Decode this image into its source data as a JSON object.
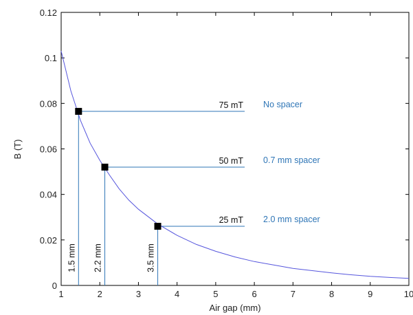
{
  "chart_data": {
    "type": "line",
    "xlabel": "Air gap (mm)",
    "ylabel": "B (T)",
    "xlim": [
      1,
      10
    ],
    "ylim": [
      0,
      0.12
    ],
    "x_ticks": [
      1,
      2,
      3,
      4,
      5,
      6,
      7,
      8,
      9,
      10
    ],
    "x_tick_labels": [
      "1",
      "2",
      "3",
      "4",
      "5",
      "6",
      "7",
      "8",
      "9",
      "10"
    ],
    "y_ticks": [
      0,
      0.02,
      0.04,
      0.06,
      0.08,
      0.1,
      0.12
    ],
    "y_tick_labels": [
      "0",
      "0.02",
      "0.04",
      "0.06",
      "0.08",
      "0.1",
      "0.12"
    ],
    "grid": false,
    "colors": {
      "curve": "#5555dd",
      "annotation": "#2e75b6",
      "marker": "#000000"
    },
    "series": [
      {
        "x": [
          1.0,
          1.25,
          1.5,
          1.75,
          2.0,
          2.25,
          2.5,
          2.75,
          3.0,
          3.5,
          4.0,
          4.5,
          5.0,
          5.5,
          6.0,
          6.5,
          7.0,
          7.5,
          8.0,
          8.5,
          9.0,
          9.5,
          10.0
        ],
        "values": [
          0.103,
          0.0855,
          0.0725,
          0.0625,
          0.055,
          0.0485,
          0.0425,
          0.0375,
          0.0335,
          0.027,
          0.022,
          0.018,
          0.015,
          0.0125,
          0.0105,
          0.009,
          0.0075,
          0.0065,
          0.0055,
          0.0047,
          0.004,
          0.0035,
          0.0031
        ]
      }
    ],
    "annotations": [
      {
        "x": 1.45,
        "y": 0.0765,
        "field_label": "75 mT",
        "spacer_label": "No spacer",
        "gap_label": "1.5 mm"
      },
      {
        "x": 2.13,
        "y": 0.052,
        "field_label": "50 mT",
        "spacer_label": "0.7 mm spacer",
        "gap_label": "2.2 mm"
      },
      {
        "x": 3.5,
        "y": 0.026,
        "field_label": "25 mT",
        "spacer_label": "2.0 mm spacer",
        "gap_label": "3.5 mm"
      }
    ],
    "reference_line_end_x": 5.75
  }
}
